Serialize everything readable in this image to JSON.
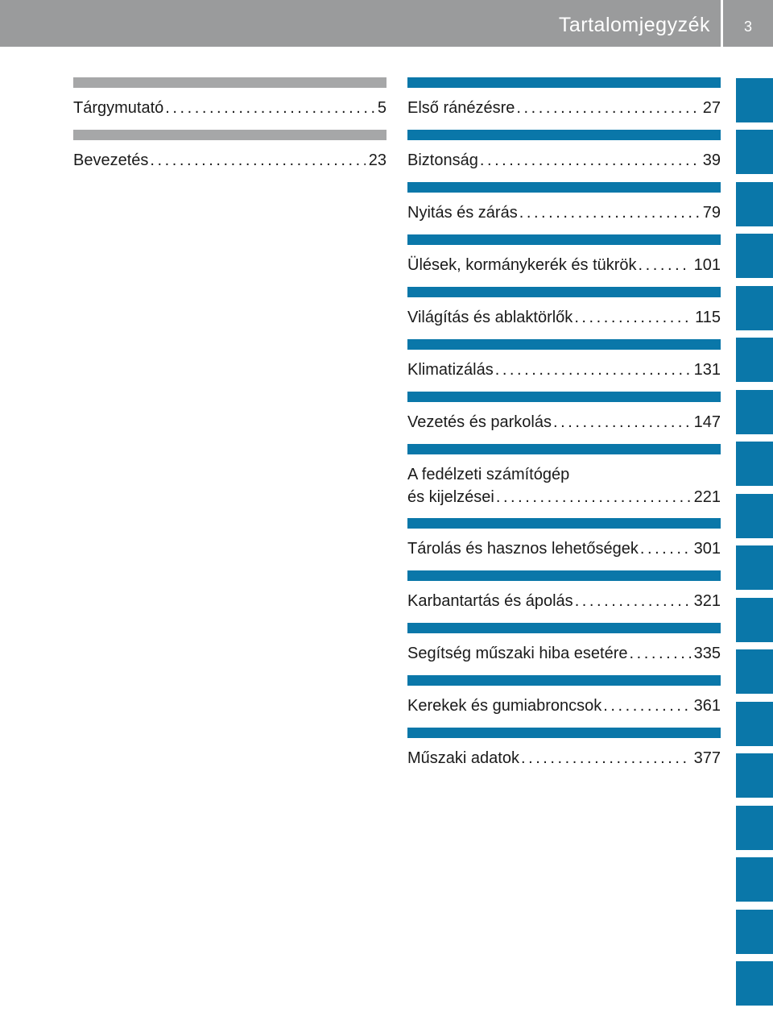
{
  "header": {
    "title": "Tartalomjegyzék",
    "page_number": "3"
  },
  "left_column": [
    {
      "label": "Tárgymutató",
      "page": "5"
    },
    {
      "label": "Bevezetés",
      "page": "23"
    }
  ],
  "right_column": [
    {
      "label": "Első ránézésre",
      "page": "27"
    },
    {
      "label": "Biztonság",
      "page": "39"
    },
    {
      "label": "Nyitás és zárás",
      "page": "79"
    },
    {
      "label": "Ülések, kormánykerék és tükrök",
      "page": "101"
    },
    {
      "label": "Világítás és ablaktörlők",
      "page": "115"
    },
    {
      "label": "Klimatizálás",
      "page": "131"
    },
    {
      "label": "Vezetés és parkolás",
      "page": "147"
    },
    {
      "label_line1": "A fedélzeti számítógép",
      "label": "és kijelzései",
      "page": "221"
    },
    {
      "label": "Tárolás és hasznos lehetőségek",
      "page": "301"
    },
    {
      "label": "Karbantartás és ápolás",
      "page": "321"
    },
    {
      "label": "Segítség műszaki hiba esetére",
      "page": "335"
    },
    {
      "label": "Kerekek és gumiabroncsok",
      "page": "361"
    },
    {
      "label": "Műszaki adatok",
      "page": "377"
    }
  ],
  "colors": {
    "header_gray": "#9a9b9c",
    "left_bar_gray": "#a6a7a8",
    "accent_blue": "#0a77a9"
  }
}
